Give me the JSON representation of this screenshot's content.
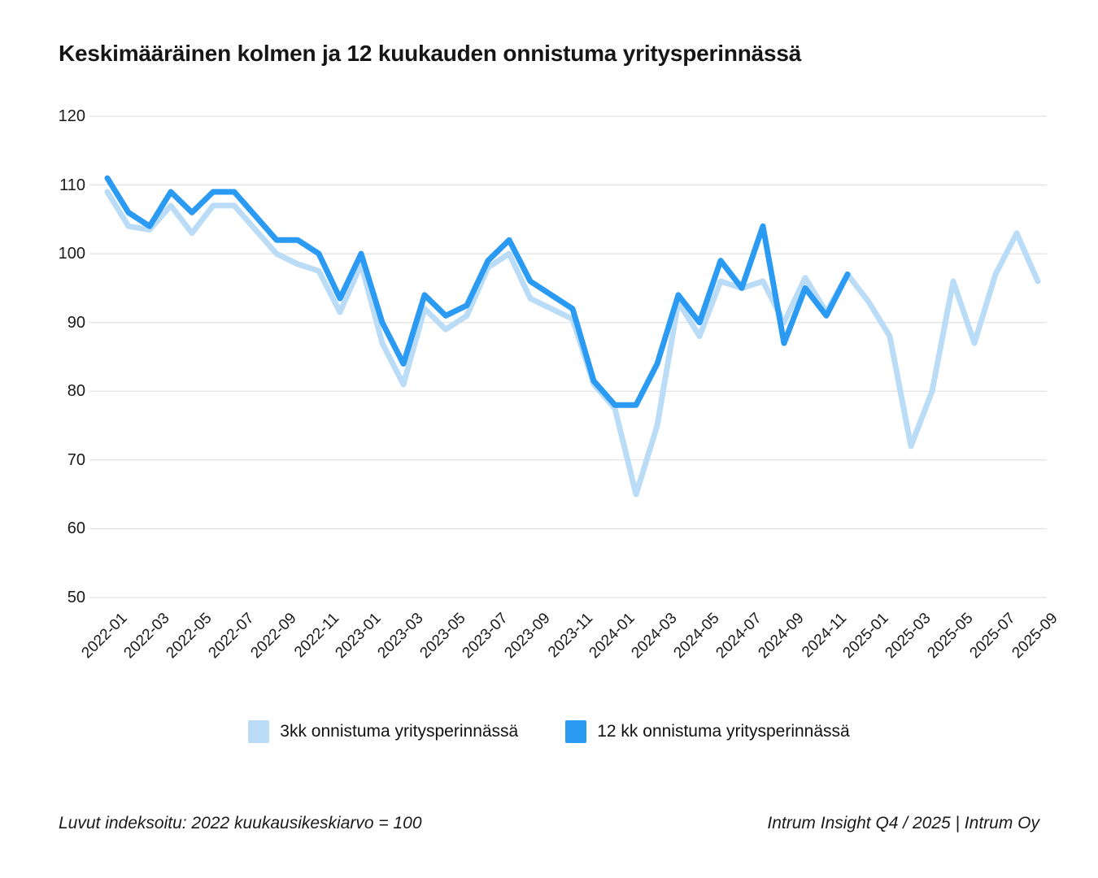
{
  "title": "Keskimääräinen kolmen ja 12 kuukauden onnistuma yritysperinnässä",
  "chart_data": {
    "type": "line",
    "x": [
      "2022-01",
      "2022-02",
      "2022-03",
      "2022-04",
      "2022-05",
      "2022-06",
      "2022-07",
      "2022-08",
      "2022-09",
      "2022-10",
      "2022-11",
      "2022-12",
      "2023-01",
      "2023-02",
      "2023-03",
      "2023-04",
      "2023-05",
      "2023-06",
      "2023-07",
      "2023-08",
      "2023-09",
      "2023-10",
      "2023-11",
      "2023-12",
      "2024-01",
      "2024-02",
      "2024-03",
      "2024-04",
      "2024-05",
      "2024-06",
      "2024-07",
      "2024-08",
      "2024-09",
      "2024-10",
      "2024-11",
      "2024-12",
      "2025-01",
      "2025-02",
      "2025-03",
      "2025-04",
      "2025-05",
      "2025-06",
      "2025-07",
      "2025-08",
      "2025-09"
    ],
    "x_labeled_every": 2,
    "series": [
      {
        "name": "3kk onnistuma yritysperinnässä",
        "color": "#BBDCF7",
        "values": [
          109,
          104,
          103.5,
          107,
          103,
          107,
          107,
          103.5,
          100,
          98.5,
          97.5,
          91.5,
          98.5,
          87,
          81,
          92,
          89,
          91,
          98,
          100,
          93.5,
          92,
          90.5,
          81,
          77.5,
          65,
          75,
          93,
          88,
          96,
          95,
          96,
          90,
          96.5,
          91.5,
          97,
          93,
          88,
          72,
          80,
          96,
          87,
          97,
          103,
          96
        ]
      },
      {
        "name": "12 kk onnistuma yritysperinnässä",
        "color": "#2B9AF2",
        "values": [
          111,
          106,
          104,
          109,
          106,
          109,
          109,
          105.5,
          102,
          102,
          100,
          93.5,
          100,
          90,
          84,
          94,
          91,
          92.5,
          99,
          102,
          96,
          94,
          92,
          81.5,
          78,
          78,
          84,
          94,
          90,
          99,
          95,
          104,
          87,
          95,
          91,
          97,
          null,
          null,
          null,
          null,
          null,
          null,
          null,
          null,
          null
        ]
      }
    ],
    "ylim": [
      50,
      120
    ],
    "yticks": [
      120,
      110,
      100,
      90,
      80,
      70,
      60,
      50
    ],
    "grid": "horizontal",
    "grid_color": "#DBDBDB",
    "legend_position": "bottom"
  },
  "legend": {
    "items": [
      {
        "label": "3kk onnistuma yritysperinnässä",
        "color": "#BBDCF7"
      },
      {
        "label": "12 kk onnistuma yritysperinnässä",
        "color": "#2B9AF2"
      }
    ]
  },
  "footer": {
    "left": "Luvut indeksoitu: 2022 kuukausikeskiarvo = 100",
    "right": "Intrum Insight Q4 / 2025 | Intrum Oy"
  }
}
